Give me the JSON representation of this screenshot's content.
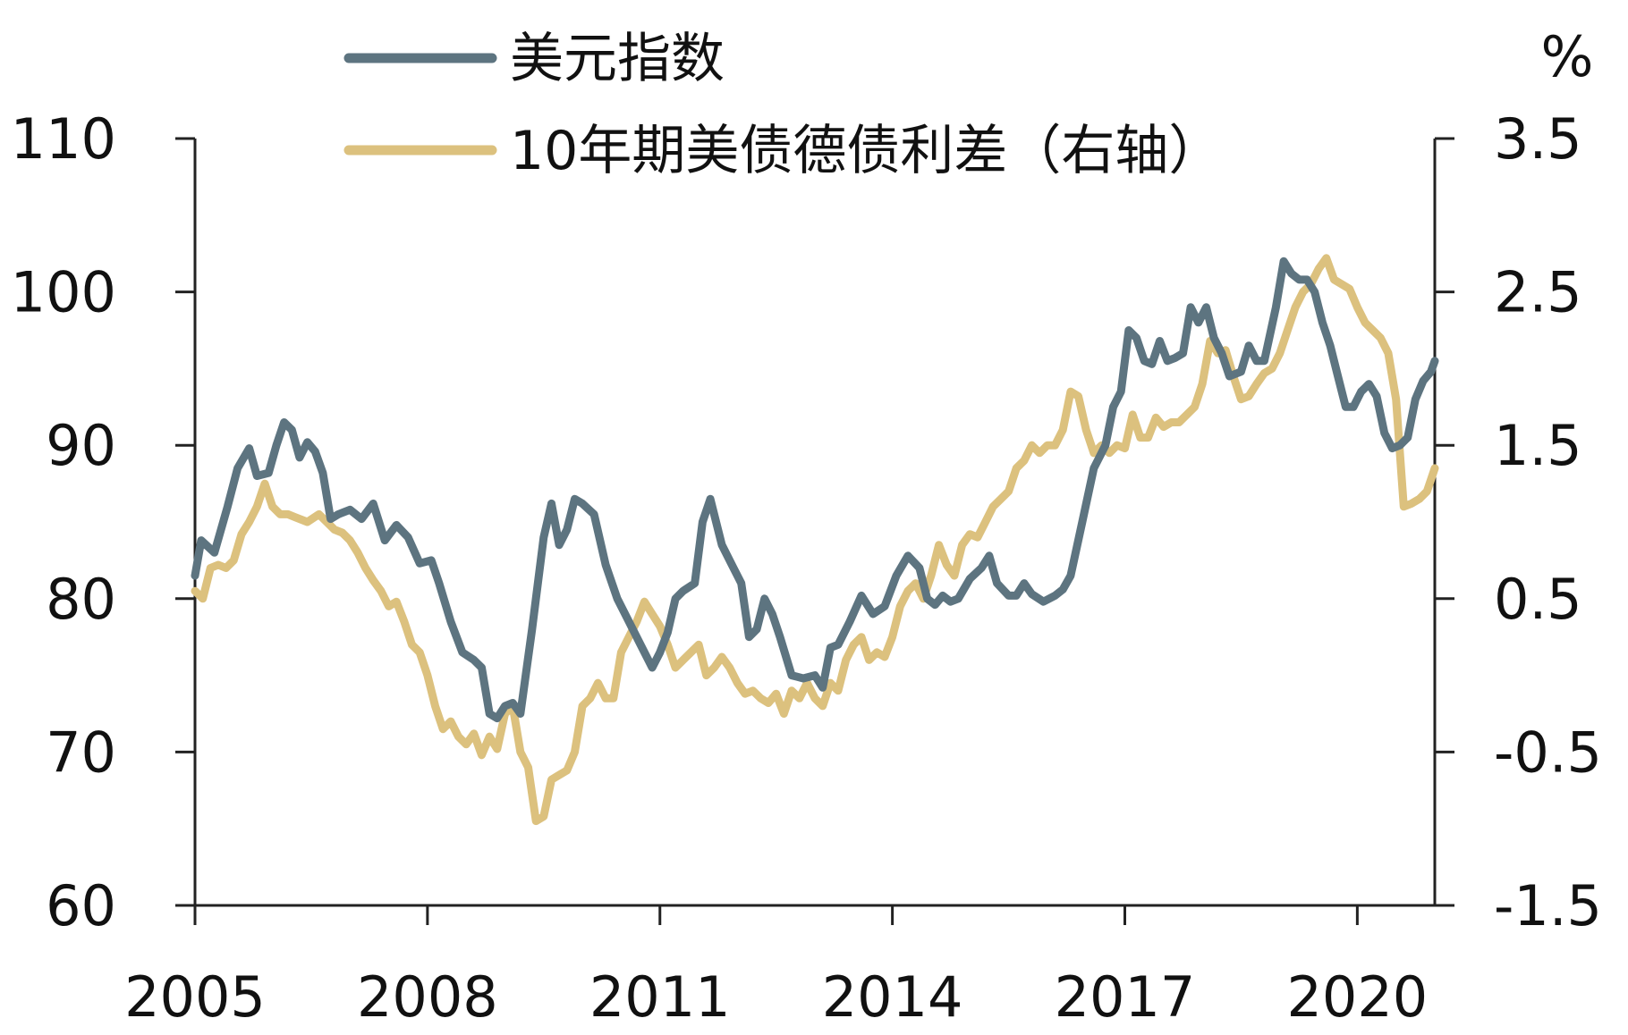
{
  "chart_data": {
    "type": "line",
    "legend": "top-left",
    "grid": false,
    "unit_right": "%",
    "x_tick_labels": [
      "2005",
      "2008",
      "2011",
      "2014",
      "2017",
      "2020"
    ],
    "x_ticks": [
      2005,
      2008,
      2011,
      2014,
      2017,
      2020
    ],
    "xlim": [
      2005,
      2021
    ],
    "ylim_left": [
      60,
      110
    ],
    "left_tick_labels": [
      "110",
      "100",
      "90",
      "80",
      "70",
      "60"
    ],
    "left_ticks": [
      110,
      100,
      90,
      80,
      70,
      60
    ],
    "ylim_right": [
      -1.5,
      3.5
    ],
    "right_tick_labels": [
      "3.5",
      "2.5",
      "1.5",
      "0.5",
      "-0.5",
      "-1.5"
    ],
    "right_ticks": [
      3.5,
      2.5,
      1.5,
      0.5,
      -0.5,
      -1.5
    ],
    "series": [
      {
        "name": "美元指数",
        "axis": "left",
        "color": "#5d7480",
        "points": [
          [
            2005.0,
            81.5
          ],
          [
            2005.08,
            83.8
          ],
          [
            2005.25,
            83.0
          ],
          [
            2005.42,
            86.0
          ],
          [
            2005.55,
            88.5
          ],
          [
            2005.7,
            89.8
          ],
          [
            2005.8,
            88.0
          ],
          [
            2005.95,
            88.2
          ],
          [
            2006.05,
            90.0
          ],
          [
            2006.15,
            91.5
          ],
          [
            2006.25,
            91.0
          ],
          [
            2006.35,
            89.2
          ],
          [
            2006.45,
            90.2
          ],
          [
            2006.55,
            89.6
          ],
          [
            2006.65,
            88.2
          ],
          [
            2006.75,
            85.2
          ],
          [
            2006.85,
            85.5
          ],
          [
            2007.0,
            85.8
          ],
          [
            2007.15,
            85.2
          ],
          [
            2007.3,
            86.2
          ],
          [
            2007.45,
            83.8
          ],
          [
            2007.6,
            84.8
          ],
          [
            2007.75,
            84.0
          ],
          [
            2007.9,
            82.3
          ],
          [
            2008.05,
            82.5
          ],
          [
            2008.15,
            81.0
          ],
          [
            2008.3,
            78.5
          ],
          [
            2008.45,
            76.5
          ],
          [
            2008.6,
            76.0
          ],
          [
            2008.7,
            75.5
          ],
          [
            2008.8,
            72.5
          ],
          [
            2008.9,
            72.2
          ],
          [
            2009.0,
            73.0
          ],
          [
            2009.1,
            73.2
          ],
          [
            2009.2,
            72.5
          ],
          [
            2009.35,
            78.0
          ],
          [
            2009.5,
            84.0
          ],
          [
            2009.6,
            86.2
          ],
          [
            2009.7,
            83.5
          ],
          [
            2009.8,
            84.5
          ],
          [
            2009.9,
            86.5
          ],
          [
            2010.0,
            86.2
          ],
          [
            2010.15,
            85.5
          ],
          [
            2010.3,
            82.2
          ],
          [
            2010.45,
            80.0
          ],
          [
            2010.6,
            78.5
          ],
          [
            2010.75,
            77.0
          ],
          [
            2010.9,
            75.5
          ],
          [
            2011.0,
            76.5
          ],
          [
            2011.1,
            77.8
          ],
          [
            2011.2,
            80.0
          ],
          [
            2011.3,
            80.5
          ],
          [
            2011.45,
            81.0
          ],
          [
            2011.55,
            85.0
          ],
          [
            2011.65,
            86.5
          ],
          [
            2011.8,
            83.5
          ],
          [
            2011.95,
            82.0
          ],
          [
            2012.05,
            81.0
          ],
          [
            2012.15,
            77.5
          ],
          [
            2012.25,
            78.0
          ],
          [
            2012.35,
            80.0
          ],
          [
            2012.45,
            79.0
          ],
          [
            2012.55,
            77.5
          ],
          [
            2012.7,
            75.0
          ],
          [
            2012.85,
            74.8
          ],
          [
            2013.0,
            75.0
          ],
          [
            2013.1,
            74.2
          ],
          [
            2013.2,
            76.8
          ],
          [
            2013.3,
            77.0
          ],
          [
            2013.45,
            78.5
          ],
          [
            2013.6,
            80.2
          ],
          [
            2013.75,
            79.0
          ],
          [
            2013.9,
            79.5
          ],
          [
            2014.05,
            81.5
          ],
          [
            2014.2,
            82.8
          ],
          [
            2014.35,
            82.0
          ],
          [
            2014.45,
            80.0
          ],
          [
            2014.55,
            79.6
          ],
          [
            2014.65,
            80.2
          ],
          [
            2014.75,
            79.8
          ],
          [
            2014.85,
            80.0
          ],
          [
            2015.0,
            81.3
          ],
          [
            2015.15,
            82.0
          ],
          [
            2015.25,
            82.8
          ],
          [
            2015.35,
            81.0
          ],
          [
            2015.5,
            80.2
          ],
          [
            2015.6,
            80.2
          ],
          [
            2015.7,
            81.0
          ],
          [
            2015.8,
            80.3
          ],
          [
            2015.95,
            79.8
          ],
          [
            2016.1,
            80.2
          ],
          [
            2016.2,
            80.6
          ],
          [
            2016.3,
            81.5
          ],
          [
            2016.45,
            85.0
          ],
          [
            2016.6,
            88.5
          ],
          [
            2016.75,
            90.0
          ],
          [
            2016.85,
            92.5
          ],
          [
            2016.95,
            93.5
          ],
          [
            2017.05,
            97.5
          ],
          [
            2017.15,
            97.0
          ],
          [
            2017.25,
            95.5
          ],
          [
            2017.35,
            95.3
          ],
          [
            2017.45,
            96.8
          ],
          [
            2017.55,
            95.5
          ],
          [
            2017.65,
            95.7
          ],
          [
            2017.75,
            96.0
          ],
          [
            2017.85,
            99.0
          ],
          [
            2017.95,
            98.0
          ],
          [
            2018.05,
            99.0
          ],
          [
            2018.15,
            97.0
          ],
          [
            2018.25,
            96.0
          ],
          [
            2018.35,
            94.5
          ],
          [
            2018.5,
            94.8
          ],
          [
            2018.6,
            96.5
          ],
          [
            2018.7,
            95.5
          ],
          [
            2018.8,
            95.5
          ],
          [
            2018.95,
            99.0
          ],
          [
            2019.05,
            102.0
          ],
          [
            2019.15,
            101.2
          ],
          [
            2019.25,
            100.8
          ],
          [
            2019.35,
            100.8
          ],
          [
            2019.45,
            100.0
          ],
          [
            2019.55,
            98.0
          ],
          [
            2019.65,
            96.5
          ],
          [
            2019.75,
            94.5
          ],
          [
            2019.85,
            92.5
          ],
          [
            2019.95,
            92.5
          ],
          [
            2020.05,
            93.5
          ],
          [
            2020.15,
            94.0
          ],
          [
            2020.25,
            93.2
          ],
          [
            2020.35,
            90.8
          ],
          [
            2020.45,
            89.8
          ],
          [
            2020.55,
            90.0
          ],
          [
            2020.65,
            90.5
          ],
          [
            2020.75,
            93.0
          ],
          [
            2020.85,
            94.2
          ],
          [
            2020.95,
            94.8
          ],
          [
            2021.0,
            95.5
          ]
        ]
      },
      {
        "name": "10年期美债德债利差（右轴）",
        "axis": "right",
        "color": "#dcc17e",
        "points": [
          [
            2005.0,
            0.55
          ],
          [
            2005.1,
            0.5
          ],
          [
            2005.2,
            0.7
          ],
          [
            2005.3,
            0.72
          ],
          [
            2005.4,
            0.7
          ],
          [
            2005.5,
            0.75
          ],
          [
            2005.6,
            0.92
          ],
          [
            2005.7,
            1.0
          ],
          [
            2005.8,
            1.1
          ],
          [
            2005.9,
            1.25
          ],
          [
            2006.0,
            1.1
          ],
          [
            2006.1,
            1.05
          ],
          [
            2006.2,
            1.05
          ],
          [
            2006.3,
            1.03
          ],
          [
            2006.45,
            1.0
          ],
          [
            2006.6,
            1.05
          ],
          [
            2006.7,
            1.0
          ],
          [
            2006.8,
            0.95
          ],
          [
            2006.9,
            0.93
          ],
          [
            2007.0,
            0.88
          ],
          [
            2007.1,
            0.8
          ],
          [
            2007.2,
            0.7
          ],
          [
            2007.3,
            0.62
          ],
          [
            2007.4,
            0.55
          ],
          [
            2007.5,
            0.45
          ],
          [
            2007.6,
            0.48
          ],
          [
            2007.7,
            0.35
          ],
          [
            2007.8,
            0.2
          ],
          [
            2007.9,
            0.15
          ],
          [
            2008.0,
            0.0
          ],
          [
            2008.1,
            -0.2
          ],
          [
            2008.2,
            -0.35
          ],
          [
            2008.3,
            -0.3
          ],
          [
            2008.4,
            -0.4
          ],
          [
            2008.5,
            -0.45
          ],
          [
            2008.6,
            -0.38
          ],
          [
            2008.7,
            -0.52
          ],
          [
            2008.8,
            -0.4
          ],
          [
            2008.9,
            -0.48
          ],
          [
            2009.0,
            -0.25
          ],
          [
            2009.1,
            -0.2
          ],
          [
            2009.2,
            -0.5
          ],
          [
            2009.3,
            -0.6
          ],
          [
            2009.4,
            -0.95
          ],
          [
            2009.5,
            -0.92
          ],
          [
            2009.6,
            -0.68
          ],
          [
            2009.7,
            -0.65
          ],
          [
            2009.8,
            -0.62
          ],
          [
            2009.9,
            -0.5
          ],
          [
            2010.0,
            -0.2
          ],
          [
            2010.1,
            -0.15
          ],
          [
            2010.2,
            -0.05
          ],
          [
            2010.3,
            -0.15
          ],
          [
            2010.4,
            -0.15
          ],
          [
            2010.5,
            0.15
          ],
          [
            2010.6,
            0.25
          ],
          [
            2010.7,
            0.35
          ],
          [
            2010.8,
            0.48
          ],
          [
            2010.9,
            0.4
          ],
          [
            2011.0,
            0.32
          ],
          [
            2011.1,
            0.2
          ],
          [
            2011.2,
            0.05
          ],
          [
            2011.3,
            0.1
          ],
          [
            2011.4,
            0.15
          ],
          [
            2011.5,
            0.2
          ],
          [
            2011.6,
            0.0
          ],
          [
            2011.7,
            0.05
          ],
          [
            2011.8,
            0.12
          ],
          [
            2011.9,
            0.05
          ],
          [
            2012.0,
            -0.05
          ],
          [
            2012.1,
            -0.12
          ],
          [
            2012.2,
            -0.1
          ],
          [
            2012.3,
            -0.15
          ],
          [
            2012.4,
            -0.18
          ],
          [
            2012.5,
            -0.12
          ],
          [
            2012.6,
            -0.25
          ],
          [
            2012.7,
            -0.1
          ],
          [
            2012.8,
            -0.15
          ],
          [
            2012.9,
            -0.05
          ],
          [
            2013.0,
            -0.15
          ],
          [
            2013.1,
            -0.2
          ],
          [
            2013.2,
            -0.05
          ],
          [
            2013.3,
            -0.1
          ],
          [
            2013.4,
            0.1
          ],
          [
            2013.5,
            0.2
          ],
          [
            2013.6,
            0.25
          ],
          [
            2013.7,
            0.1
          ],
          [
            2013.8,
            0.15
          ],
          [
            2013.9,
            0.12
          ],
          [
            2014.0,
            0.25
          ],
          [
            2014.1,
            0.45
          ],
          [
            2014.2,
            0.55
          ],
          [
            2014.3,
            0.6
          ],
          [
            2014.4,
            0.5
          ],
          [
            2014.5,
            0.65
          ],
          [
            2014.6,
            0.85
          ],
          [
            2014.7,
            0.72
          ],
          [
            2014.8,
            0.65
          ],
          [
            2014.9,
            0.85
          ],
          [
            2015.0,
            0.92
          ],
          [
            2015.1,
            0.9
          ],
          [
            2015.2,
            1.0
          ],
          [
            2015.3,
            1.1
          ],
          [
            2015.4,
            1.15
          ],
          [
            2015.5,
            1.2
          ],
          [
            2015.6,
            1.35
          ],
          [
            2015.7,
            1.4
          ],
          [
            2015.8,
            1.5
          ],
          [
            2015.9,
            1.45
          ],
          [
            2016.0,
            1.5
          ],
          [
            2016.1,
            1.5
          ],
          [
            2016.2,
            1.6
          ],
          [
            2016.3,
            1.85
          ],
          [
            2016.4,
            1.82
          ],
          [
            2016.5,
            1.6
          ],
          [
            2016.6,
            1.45
          ],
          [
            2016.7,
            1.5
          ],
          [
            2016.8,
            1.45
          ],
          [
            2016.9,
            1.5
          ],
          [
            2017.0,
            1.48
          ],
          [
            2017.1,
            1.7
          ],
          [
            2017.2,
            1.55
          ],
          [
            2017.3,
            1.55
          ],
          [
            2017.4,
            1.68
          ],
          [
            2017.5,
            1.62
          ],
          [
            2017.6,
            1.65
          ],
          [
            2017.7,
            1.65
          ],
          [
            2017.8,
            1.7
          ],
          [
            2017.9,
            1.75
          ],
          [
            2018.0,
            1.9
          ],
          [
            2018.1,
            2.18
          ],
          [
            2018.2,
            2.1
          ],
          [
            2018.3,
            2.12
          ],
          [
            2018.4,
            1.95
          ],
          [
            2018.5,
            1.8
          ],
          [
            2018.6,
            1.82
          ],
          [
            2018.7,
            1.9
          ],
          [
            2018.8,
            1.97
          ],
          [
            2018.9,
            2.0
          ],
          [
            2019.0,
            2.1
          ],
          [
            2019.1,
            2.25
          ],
          [
            2019.2,
            2.4
          ],
          [
            2019.3,
            2.5
          ],
          [
            2019.4,
            2.55
          ],
          [
            2019.5,
            2.65
          ],
          [
            2019.6,
            2.72
          ],
          [
            2019.7,
            2.58
          ],
          [
            2019.8,
            2.55
          ],
          [
            2019.9,
            2.52
          ],
          [
            2020.0,
            2.4
          ],
          [
            2020.1,
            2.3
          ],
          [
            2020.2,
            2.25
          ],
          [
            2020.3,
            2.2
          ],
          [
            2020.4,
            2.1
          ],
          [
            2020.5,
            1.8
          ],
          [
            2020.6,
            1.1
          ],
          [
            2020.7,
            1.12
          ],
          [
            2020.8,
            1.15
          ],
          [
            2020.9,
            1.2
          ],
          [
            2021.0,
            1.35
          ]
        ]
      }
    ]
  }
}
